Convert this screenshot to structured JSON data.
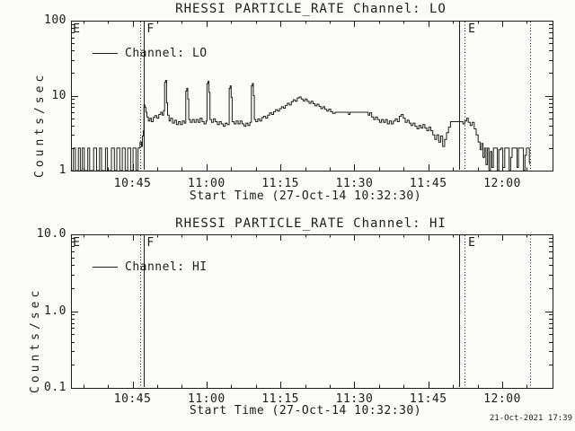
{
  "footer": {
    "timestamp": "21-Oct-2021 17:39"
  },
  "chart_data": [
    {
      "type": "line",
      "title": "RHESSI PARTICLE_RATE Channel: LO",
      "xlabel": "Start Time (27-Oct-14 10:32:30)",
      "ylabel": "Counts/sec",
      "legend_label": "Channel: LO",
      "yscale": "log",
      "ylim": [
        1,
        100
      ],
      "yticks": [
        {
          "v": 1,
          "label": "1"
        },
        {
          "v": 10,
          "label": "10"
        },
        {
          "v": 100,
          "label": "100"
        }
      ],
      "x_minutes_range": [
        0,
        97.7
      ],
      "xticks": [
        {
          "t": 12.5,
          "label": "10:45"
        },
        {
          "t": 27.5,
          "label": "11:00"
        },
        {
          "t": 42.5,
          "label": "11:15"
        },
        {
          "t": 57.5,
          "label": "11:30"
        },
        {
          "t": 72.5,
          "label": "11:45"
        },
        {
          "t": 87.5,
          "label": "12:00"
        }
      ],
      "xtick_minor_interval_min": 5,
      "grid": false,
      "legend_position": "upper-left-inside",
      "event_lines": [
        {
          "t": 14.04,
          "style": "dotted"
        },
        {
          "t": 14.77,
          "style": "solid"
        },
        {
          "t": 78.75,
          "style": "solid"
        },
        {
          "t": 79.84,
          "style": "dotted"
        },
        {
          "t": 93.14,
          "style": "dotted"
        }
      ],
      "annotations": [
        {
          "t": 0.2,
          "text": "E"
        },
        {
          "t": 15.2,
          "text": "F"
        },
        {
          "t": 80.4,
          "text": "E"
        }
      ],
      "series": [
        {
          "name": "Channel: LO",
          "color": "#1c1c1c",
          "points_minutes_vs_counts": [
            [
              0,
              1
            ],
            [
              0.5,
              2
            ],
            [
              0.9,
              1
            ],
            [
              1.5,
              2
            ],
            [
              1.9,
              1
            ],
            [
              2.3,
              2
            ],
            [
              2.7,
              1
            ],
            [
              3.4,
              2
            ],
            [
              3.8,
              1
            ],
            [
              4.6,
              2
            ],
            [
              5.2,
              1
            ],
            [
              5.8,
              2
            ],
            [
              6.2,
              1
            ],
            [
              7.0,
              2
            ],
            [
              7.4,
              1
            ],
            [
              8.2,
              2
            ],
            [
              8.8,
              1
            ],
            [
              9.3,
              2
            ],
            [
              9.9,
              1
            ],
            [
              10.4,
              2
            ],
            [
              11.0,
              1
            ],
            [
              11.5,
              2
            ],
            [
              12.1,
              1
            ],
            [
              12.6,
              2
            ],
            [
              13.2,
              1
            ],
            [
              13.6,
              2
            ],
            [
              14.0,
              2.4
            ],
            [
              14.3,
              2.1
            ],
            [
              14.5,
              2.9
            ],
            [
              14.7,
              3.4
            ],
            [
              14.8,
              7.5
            ],
            [
              15.0,
              7.0
            ],
            [
              15.2,
              6.0
            ],
            [
              15.4,
              5.2
            ],
            [
              15.7,
              4.6
            ],
            [
              16.0,
              5.0
            ],
            [
              16.3,
              4.5
            ],
            [
              16.7,
              5.1
            ],
            [
              17.0,
              5.4
            ],
            [
              17.4,
              5.0
            ],
            [
              17.8,
              5.6
            ],
            [
              18.2,
              6.0
            ],
            [
              18.5,
              5.5
            ],
            [
              18.8,
              6.3
            ],
            [
              19.0,
              15.0
            ],
            [
              19.2,
              16.0
            ],
            [
              19.4,
              8.0
            ],
            [
              19.6,
              5.5
            ],
            [
              19.9,
              4.6
            ],
            [
              20.2,
              5.0
            ],
            [
              20.6,
              4.3
            ],
            [
              21.0,
              4.7
            ],
            [
              21.4,
              4.1
            ],
            [
              21.8,
              4.5
            ],
            [
              22.2,
              4.1
            ],
            [
              22.6,
              4.6
            ],
            [
              23.0,
              4.3
            ],
            [
              23.3,
              11.5
            ],
            [
              23.5,
              12.5
            ],
            [
              23.7,
              9.0
            ],
            [
              23.9,
              4.8
            ],
            [
              24.2,
              4.4
            ],
            [
              24.6,
              4.8
            ],
            [
              25.0,
              4.4
            ],
            [
              25.4,
              4.8
            ],
            [
              25.8,
              4.4
            ],
            [
              26.2,
              5.0
            ],
            [
              26.6,
              4.5
            ],
            [
              27.0,
              4.2
            ],
            [
              27.4,
              4.6
            ],
            [
              27.6,
              14.5
            ],
            [
              27.8,
              15.5
            ],
            [
              28.0,
              11.0
            ],
            [
              28.2,
              4.8
            ],
            [
              28.5,
              4.4
            ],
            [
              28.9,
              4.9
            ],
            [
              29.3,
              4.5
            ],
            [
              29.7,
              4.1
            ],
            [
              30.1,
              4.5
            ],
            [
              30.5,
              4.2
            ],
            [
              30.9,
              3.9
            ],
            [
              31.3,
              4.3
            ],
            [
              31.7,
              4.1
            ],
            [
              32.1,
              12.5
            ],
            [
              32.3,
              13.5
            ],
            [
              32.5,
              9.5
            ],
            [
              32.7,
              4.5
            ],
            [
              33.1,
              4.2
            ],
            [
              33.5,
              4.6
            ],
            [
              33.9,
              4.2
            ],
            [
              34.3,
              4.6
            ],
            [
              34.7,
              4.2
            ],
            [
              35.1,
              3.9
            ],
            [
              35.5,
              4.3
            ],
            [
              35.9,
              4.0
            ],
            [
              36.3,
              4.4
            ],
            [
              36.6,
              13.5
            ],
            [
              36.8,
              14.5
            ],
            [
              37.0,
              10.0
            ],
            [
              37.2,
              4.8
            ],
            [
              37.5,
              4.5
            ],
            [
              37.9,
              4.9
            ],
            [
              38.3,
              4.6
            ],
            [
              38.7,
              5.1
            ],
            [
              39.1,
              5.3
            ],
            [
              39.5,
              5.0
            ],
            [
              39.9,
              5.5
            ],
            [
              40.3,
              5.9
            ],
            [
              40.7,
              5.6
            ],
            [
              41.1,
              6.1
            ],
            [
              41.5,
              6.5
            ],
            [
              41.9,
              6.2
            ],
            [
              42.3,
              6.7
            ],
            [
              42.7,
              7.1
            ],
            [
              43.1,
              6.8
            ],
            [
              43.5,
              7.4
            ],
            [
              43.9,
              7.9
            ],
            [
              44.3,
              7.5
            ],
            [
              44.7,
              8.3
            ],
            [
              45.1,
              8.8
            ],
            [
              45.5,
              8.4
            ],
            [
              45.9,
              9.3
            ],
            [
              46.3,
              9.6
            ],
            [
              46.7,
              9.0
            ],
            [
              47.1,
              8.5
            ],
            [
              47.5,
              9.0
            ],
            [
              47.9,
              8.4
            ],
            [
              48.3,
              7.9
            ],
            [
              48.7,
              8.4
            ],
            [
              49.1,
              7.8
            ],
            [
              49.5,
              7.3
            ],
            [
              49.9,
              7.7
            ],
            [
              50.3,
              7.2
            ],
            [
              50.7,
              6.7
            ],
            [
              51.1,
              7.1
            ],
            [
              51.5,
              6.6
            ],
            [
              51.9,
              6.2
            ],
            [
              52.3,
              6.6
            ],
            [
              52.7,
              6.1
            ],
            [
              53.1,
              5.8
            ],
            [
              53.6,
              6.0
            ],
            [
              56.0,
              6.0
            ],
            [
              56.3,
              5.6
            ],
            [
              56.6,
              6.0
            ],
            [
              60.0,
              6.0
            ],
            [
              60.3,
              5.5
            ],
            [
              60.6,
              5.9
            ],
            [
              61.0,
              5.2
            ],
            [
              61.4,
              4.8
            ],
            [
              61.8,
              5.2
            ],
            [
              62.2,
              4.8
            ],
            [
              62.6,
              4.4
            ],
            [
              63.0,
              4.8
            ],
            [
              63.4,
              4.4
            ],
            [
              63.8,
              4.8
            ],
            [
              64.2,
              4.2
            ],
            [
              64.6,
              4.6
            ],
            [
              65.0,
              4.2
            ],
            [
              65.4,
              4.6
            ],
            [
              65.8,
              4.9
            ],
            [
              66.2,
              4.5
            ],
            [
              66.6,
              5.3
            ],
            [
              67.0,
              5.6
            ],
            [
              67.4,
              5.0
            ],
            [
              67.8,
              4.4
            ],
            [
              68.2,
              4.7
            ],
            [
              68.6,
              4.3
            ],
            [
              69.0,
              4.0
            ],
            [
              69.4,
              4.3
            ],
            [
              69.8,
              3.9
            ],
            [
              70.2,
              3.6
            ],
            [
              70.6,
              4.0
            ],
            [
              71.0,
              3.7
            ],
            [
              71.4,
              4.1
            ],
            [
              71.8,
              3.7
            ],
            [
              72.2,
              3.4
            ],
            [
              72.6,
              3.8
            ],
            [
              73.0,
              3.4
            ],
            [
              73.4,
              3.0
            ],
            [
              73.8,
              2.6
            ],
            [
              74.2,
              3.0
            ],
            [
              74.6,
              2.4
            ],
            [
              75.0,
              2.9
            ],
            [
              75.4,
              2.1
            ],
            [
              75.8,
              2.6
            ],
            [
              76.2,
              3.2
            ],
            [
              76.6,
              3.8
            ],
            [
              77.0,
              4.5
            ],
            [
              79.2,
              4.5
            ],
            [
              79.5,
              4.2
            ],
            [
              79.9,
              4.6
            ],
            [
              80.3,
              5.0
            ],
            [
              80.6,
              4.4
            ],
            [
              81.0,
              4.0
            ],
            [
              81.4,
              4.4
            ],
            [
              81.8,
              3.6
            ],
            [
              82.2,
              3.0
            ],
            [
              82.6,
              2.4
            ],
            [
              83.0,
              1.9
            ],
            [
              83.3,
              2.3
            ],
            [
              83.6,
              1.5
            ],
            [
              83.9,
              2.0
            ],
            [
              84.2,
              1.2
            ],
            [
              84.5,
              2.0
            ],
            [
              84.8,
              1.0
            ],
            [
              85.1,
              1.8
            ],
            [
              85.4,
              1.1
            ],
            [
              85.7,
              2.0
            ],
            [
              86.2,
              2.0
            ],
            [
              86.5,
              1.0
            ],
            [
              86.8,
              1.9
            ],
            [
              87.2,
              2.0
            ],
            [
              87.6,
              1.1
            ],
            [
              88.0,
              2.0
            ],
            [
              88.6,
              2.0
            ],
            [
              88.9,
              1.0
            ],
            [
              89.2,
              1.5
            ],
            [
              89.5,
              2.0
            ],
            [
              90.2,
              2.0
            ],
            [
              90.5,
              1.1
            ],
            [
              90.8,
              2.0
            ],
            [
              91.5,
              2.0
            ],
            [
              91.8,
              1.0
            ],
            [
              92.1,
              1.6
            ],
            [
              92.4,
              2.0
            ],
            [
              93.0,
              1.3
            ],
            [
              93.1,
              1.2
            ]
          ]
        }
      ]
    },
    {
      "type": "line",
      "title": "RHESSI PARTICLE_RATE Channel: HI",
      "xlabel": "Start Time (27-Oct-14 10:32:30)",
      "ylabel": "Counts/sec",
      "legend_label": "Channel: HI",
      "yscale": "log",
      "ylim": [
        0.1,
        10
      ],
      "yticks": [
        {
          "v": 0.1,
          "label": "0.1"
        },
        {
          "v": 1,
          "label": "1.0"
        },
        {
          "v": 10,
          "label": "10.0"
        }
      ],
      "x_minutes_range": [
        0,
        97.7
      ],
      "xticks": [
        {
          "t": 12.5,
          "label": "10:45"
        },
        {
          "t": 27.5,
          "label": "11:00"
        },
        {
          "t": 42.5,
          "label": "11:15"
        },
        {
          "t": 57.5,
          "label": "11:30"
        },
        {
          "t": 72.5,
          "label": "11:45"
        },
        {
          "t": 87.5,
          "label": "12:00"
        }
      ],
      "xtick_minor_interval_min": 5,
      "grid": false,
      "legend_position": "upper-left-inside",
      "event_lines": [
        {
          "t": 14.04,
          "style": "dotted"
        },
        {
          "t": 14.77,
          "style": "solid"
        },
        {
          "t": 78.75,
          "style": "solid"
        },
        {
          "t": 79.84,
          "style": "dotted"
        },
        {
          "t": 93.14,
          "style": "dotted"
        }
      ],
      "annotations": [
        {
          "t": 0.2,
          "text": "E"
        },
        {
          "t": 15.2,
          "text": "F"
        },
        {
          "t": 80.4,
          "text": "E"
        }
      ],
      "series": [
        {
          "name": "Channel: HI",
          "color": "#1c1c1c",
          "points_minutes_vs_counts": []
        }
      ]
    }
  ]
}
